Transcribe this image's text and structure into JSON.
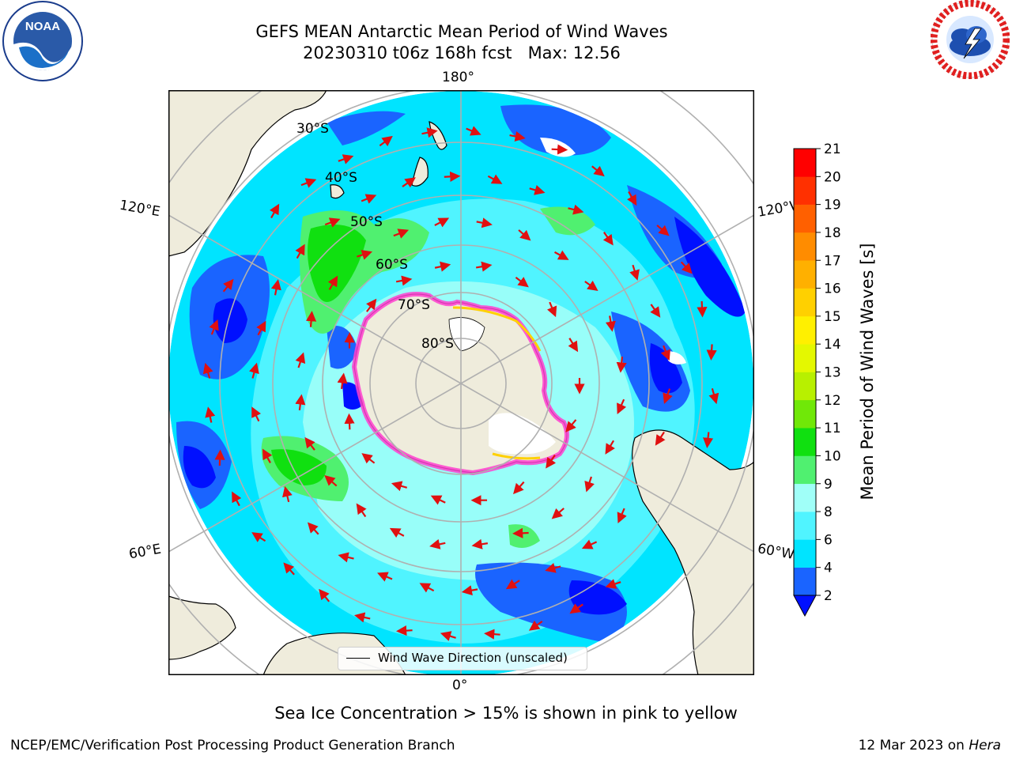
{
  "header": {
    "title_line1": "GEFS MEAN Antarctic Mean Period of Wind Waves",
    "title_line2": "20230310 t06z 168h fcst   Max: 12.56"
  },
  "logos": {
    "noaa": {
      "text": "NOAA",
      "icon": "noaa-logo"
    },
    "nws": {
      "icon": "national-weather-service-logo"
    }
  },
  "map": {
    "projection": "south-polar-stereographic",
    "longitude_labels": {
      "top": "180°",
      "bottom": "0°",
      "upper_left": "120°E",
      "upper_right": "120°W",
      "lower_left": "60°E",
      "lower_right": "60°W"
    },
    "latitude_labels": [
      "30°S",
      "40°S",
      "50°S",
      "60°S",
      "70°S",
      "80°S"
    ],
    "colors": {
      "land": "#efecdc",
      "gridline": "#b0b0b0",
      "arrow": "#e01010",
      "sea_ice": "#ff40d0"
    }
  },
  "colorbar": {
    "label": "Mean Period of Wind Waves [s]",
    "ticks": [
      "2",
      "4",
      "6",
      "8",
      "9",
      "10",
      "11",
      "12",
      "13",
      "14",
      "15",
      "16",
      "17",
      "18",
      "19",
      "20",
      "21"
    ],
    "colors": [
      "#1a64ff",
      "#00e4ff",
      "#50f4ff",
      "#a0fff8",
      "#50f070",
      "#10e010",
      "#70e808",
      "#b8f000",
      "#e4f800",
      "#fff000",
      "#ffd000",
      "#ffb000",
      "#ff8c00",
      "#ff6000",
      "#ff3000",
      "#ff0000"
    ],
    "under_color": "#0010ff"
  },
  "legend": {
    "label": "Wind Wave Direction (unscaled)"
  },
  "footnote": "Sea Ice Concentration > 15% is shown in pink to yellow",
  "credits": {
    "left": "NCEP/EMC/Verification Post Processing Product Generation Branch",
    "right_date": "12 Mar 2023 on ",
    "right_host": "Hera"
  }
}
